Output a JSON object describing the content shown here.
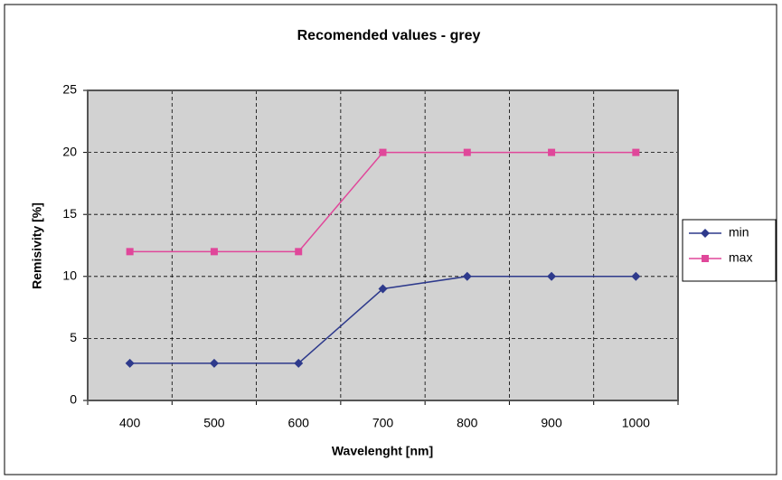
{
  "chart_data": {
    "type": "line",
    "title": "Recomended values - grey",
    "x_label": "Wavelenght [nm]",
    "y_label": "Remisivity [%]",
    "categories": [
      400,
      500,
      600,
      700,
      800,
      900,
      1000
    ],
    "series": [
      {
        "name": "min",
        "color": "#2e3a8c",
        "marker": "diamond",
        "values": [
          3,
          3,
          3,
          9,
          10,
          10,
          10
        ]
      },
      {
        "name": "max",
        "color": "#e0479a",
        "marker": "square",
        "values": [
          12,
          12,
          12,
          20,
          20,
          20,
          20
        ]
      }
    ],
    "ylim": [
      0,
      25
    ],
    "yticks": [
      0,
      5,
      10,
      15,
      20,
      25
    ],
    "grid": true,
    "legend": "right"
  }
}
